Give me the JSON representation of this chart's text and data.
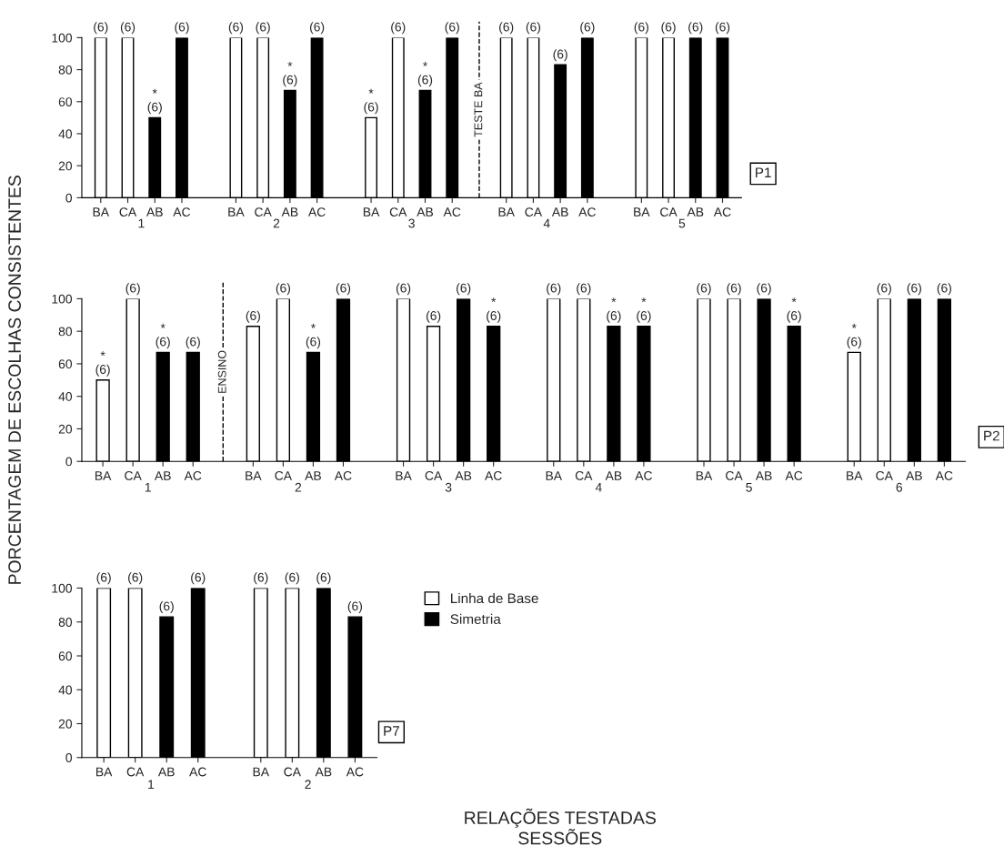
{
  "chart_data": [
    {
      "type": "bar",
      "categories": [
        "BA",
        "CA",
        "AB",
        "AC",
        null,
        "BA",
        "CA",
        "AB",
        "AC",
        null,
        "BA",
        "CA",
        "AB",
        "AC",
        null,
        "BA",
        "CA",
        "AB",
        "AC",
        null,
        "BA",
        "CA",
        "AB",
        "AC"
      ],
      "series": [
        {
          "color": "#ffffff",
          "values": [
            100,
            100,
            null,
            null,
            null,
            100,
            100,
            null,
            null,
            null,
            50,
            100,
            null,
            null,
            null,
            100,
            100,
            null,
            null,
            null,
            100,
            100,
            null,
            null
          ]
        },
        {
          "color": "#000000",
          "values": [
            null,
            null,
            50,
            100,
            null,
            null,
            null,
            67,
            100,
            null,
            null,
            null,
            67,
            100,
            null,
            null,
            null,
            83,
            100,
            null,
            null,
            null,
            100,
            100
          ]
        }
      ],
      "ylim": [
        0,
        100
      ],
      "yticks": [
        0,
        20,
        40,
        60,
        80,
        100
      ],
      "annotations": [
        "(6)",
        "(6)",
        "*\n(6)",
        "(6)",
        "(6)",
        "(6)",
        "*\n(6)",
        "(6)",
        "*\n(6)",
        "(6)",
        "*\n(6)",
        "(6)",
        "(6)",
        "(6)",
        "(6)",
        "(6)",
        "(6)",
        "(6)",
        "(6)",
        "(6)",
        "1",
        "2",
        "3",
        {
          "text": "TESTE BA"
        },
        "4",
        "5",
        "P1"
      ],
      "legend": false
    },
    {
      "type": "bar",
      "categories": [
        "BA",
        "CA",
        "AB",
        "AC",
        null,
        "BA",
        "CA",
        "AB",
        "AC",
        null,
        "BA",
        "CA",
        "AB",
        "AC",
        null,
        "BA",
        "CA",
        "AB",
        "AC",
        null,
        "BA",
        "CA",
        "AB",
        "AC",
        null,
        "BA",
        "CA",
        "AB",
        "AC"
      ],
      "series": [
        {
          "color": "#ffffff",
          "values": [
            50,
            100,
            null,
            null,
            null,
            83,
            100,
            null,
            null,
            null,
            100,
            83,
            null,
            null,
            null,
            100,
            100,
            null,
            null,
            null,
            100,
            100,
            null,
            null,
            null,
            67,
            100,
            null,
            null
          ]
        },
        {
          "color": "#000000",
          "values": [
            null,
            null,
            67,
            67,
            null,
            null,
            null,
            67,
            100,
            null,
            null,
            null,
            100,
            83,
            null,
            null,
            null,
            83,
            83,
            null,
            null,
            null,
            100,
            83,
            null,
            null,
            null,
            100,
            100
          ]
        }
      ],
      "ylim": [
        0,
        100
      ],
      "yticks": [
        0,
        20,
        40,
        60,
        80,
        100
      ],
      "ylabel": "PORCENTAGEM DE ESCOLHAS CONSISTENTES",
      "annotations": [
        "*\n(6)",
        "(6)",
        "*\n(6)",
        "(6)",
        "(6)",
        "(6)",
        "*\n(6)",
        "(6)",
        "(6)",
        "(6)",
        "(6)",
        "*\n(6)",
        "(6)",
        "(6)",
        "*\n(6)",
        "*\n(6)",
        "(6)",
        "(6)",
        "(6)",
        "*\n(6)",
        "*\n(6)",
        "(6)",
        "(6)",
        "(6)",
        "1",
        {
          "text": "ENSINO"
        },
        "2",
        "3",
        "4",
        "5",
        "6",
        "P2"
      ],
      "legend": false
    },
    {
      "type": "bar",
      "categories": [
        "BA",
        "CA",
        "AB",
        "AC",
        null,
        "BA",
        "CA",
        "AB",
        "AC"
      ],
      "series": [
        {
          "name": "Linha de Base",
          "color": "#ffffff",
          "values": [
            100,
            100,
            null,
            null,
            null,
            100,
            100,
            null,
            null
          ]
        },
        {
          "name": "Simetria",
          "color": "#000000",
          "values": [
            null,
            null,
            83,
            100,
            null,
            null,
            null,
            100,
            83
          ]
        }
      ],
      "ylim": [
        0,
        100
      ],
      "yticks": [
        0,
        20,
        40,
        60,
        80,
        100
      ],
      "xlabel": "RELAÇÕES TESTADAS\nSESSÕES",
      "annotations": [
        "(6)",
        "(6)",
        "(6)",
        "(6)",
        "(6)",
        "(6)",
        "(6)",
        "(6)",
        "1",
        "2",
        "P7"
      ],
      "legend": "right",
      "grid": false
    }
  ]
}
